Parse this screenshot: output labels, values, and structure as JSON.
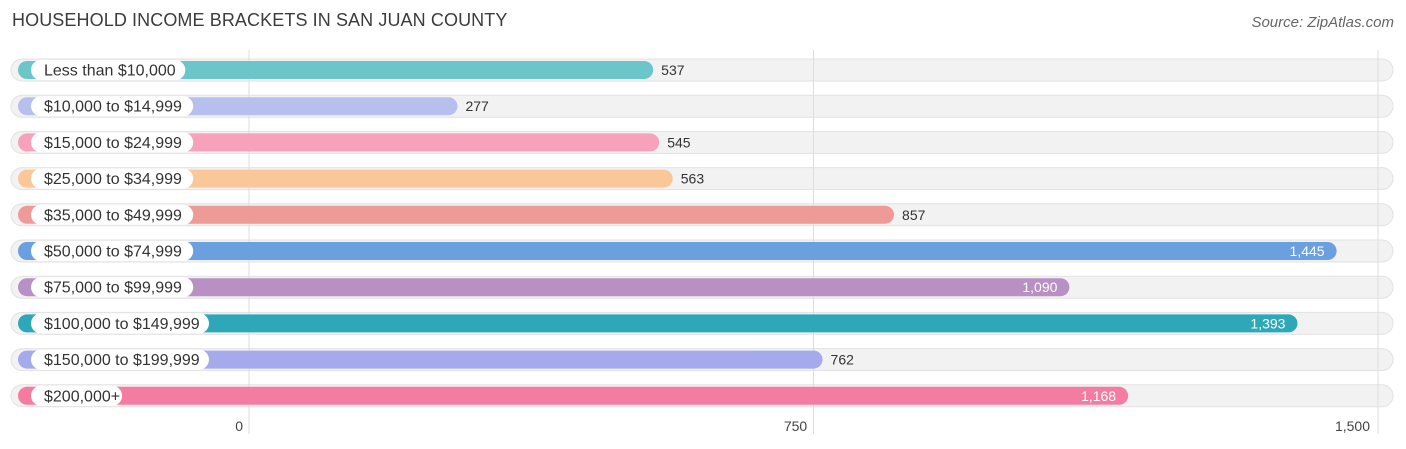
{
  "header": {
    "title": "HOUSEHOLD INCOME BRACKETS IN SAN JUAN COUNTY",
    "source": "Source: ZipAtlas.com"
  },
  "chart_data": {
    "type": "bar",
    "orientation": "horizontal",
    "title": "HOUSEHOLD INCOME BRACKETS IN SAN JUAN COUNTY",
    "xlabel": "",
    "ylabel": "",
    "xlim": [
      0,
      1500
    ],
    "grid": true,
    "categories": [
      "Less than $10,000",
      "$10,000 to $14,999",
      "$15,000 to $24,999",
      "$25,000 to $34,999",
      "$35,000 to $49,999",
      "$50,000 to $74,999",
      "$75,000 to $99,999",
      "$100,000 to $149,999",
      "$150,000 to $199,999",
      "$200,000+"
    ],
    "values": [
      537,
      277,
      545,
      563,
      857,
      1445,
      1090,
      1393,
      762,
      1168
    ],
    "value_labels": [
      "537",
      "277",
      "545",
      "563",
      "857",
      "1,445",
      "1,090",
      "1,393",
      "762",
      "1,168"
    ],
    "colors": [
      "#6cc6c9",
      "#b7bfee",
      "#f7a1bc",
      "#fac898",
      "#ee9a96",
      "#6a9fe0",
      "#b890c3",
      "#2ea8b8",
      "#a4aaeb",
      "#f57ca1"
    ],
    "ticks": [
      0,
      750,
      1500
    ],
    "tick_labels": [
      "0",
      "750",
      "1,500"
    ]
  }
}
